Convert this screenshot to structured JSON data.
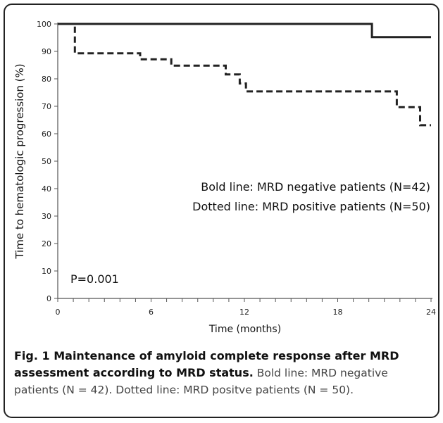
{
  "chart_data": {
    "type": "line",
    "ylabel": "Time to hematologic progression (%)",
    "xlabel": "Time (months)",
    "x_ticks": [
      0,
      6,
      12,
      18,
      24
    ],
    "y_ticks": [
      0,
      10,
      20,
      30,
      40,
      50,
      60,
      70,
      80,
      90,
      100
    ],
    "xlim": [
      0,
      24
    ],
    "ylim": [
      0,
      100
    ],
    "grid": false,
    "legend_position": "center-right",
    "legend": [
      "Bold line: MRD negative patients (N=42)",
      "Dotted line: MRD positive patients (N=50)"
    ],
    "annotation": "P=0.001",
    "series": [
      {
        "style": "solid",
        "x": [
          0,
          20.2,
          20.2,
          24
        ],
        "y": [
          100,
          100,
          95.2,
          95.2
        ]
      },
      {
        "style": "dashed",
        "x": [
          0,
          1.1,
          1.1,
          5.3,
          5.3,
          7.3,
          7.3,
          10.8,
          10.8,
          11.7,
          11.7,
          12.1,
          12.1,
          21.8,
          21.8,
          23.3,
          23.3,
          24
        ],
        "y": [
          100,
          100,
          89.3,
          89.3,
          87.1,
          87.1,
          84.8,
          84.8,
          81.6,
          81.6,
          78.3,
          78.3,
          75.4,
          75.4,
          69.7,
          69.7,
          63.1,
          63.1
        ]
      }
    ]
  },
  "caption": {
    "bold": "Fig. 1 Maintenance of amyloid complete response after MRD assessment according to MRD status.",
    "normal": " Bold line: MRD negative patients (N = 42). Dotted line: MRD positve patients (N = 50)."
  }
}
